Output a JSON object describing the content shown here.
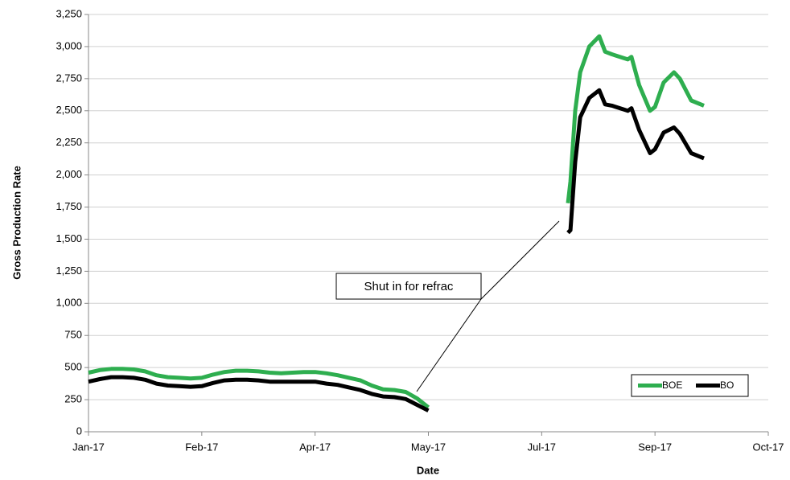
{
  "chart_data": {
    "type": "line",
    "x_label": "Date",
    "y_label": "Gross Production Rate",
    "annotation": "Shut in for refrac",
    "legend": "lower right",
    "grid": true,
    "xlim": [
      0,
      300
    ],
    "xticks": [
      {
        "value": 0,
        "label": "Jan-17"
      },
      {
        "value": 50,
        "label": "Feb-17"
      },
      {
        "value": 100,
        "label": "Apr-17"
      },
      {
        "value": 150,
        "label": "May-17"
      },
      {
        "value": 200,
        "label": "Jul-17"
      },
      {
        "value": 250,
        "label": "Sep-17"
      },
      {
        "value": 300,
        "label": "Oct-17"
      }
    ],
    "ylim": [
      0,
      3250
    ],
    "yticks": [
      0,
      250,
      500,
      750,
      {
        "value": 1000,
        "label": "1,000"
      },
      {
        "value": 1250,
        "label": "1,250"
      },
      {
        "value": 1500,
        "label": "1,500"
      },
      {
        "value": 1750,
        "label": "1,750"
      },
      {
        "value": 2000,
        "label": "2,000"
      },
      {
        "value": 2250,
        "label": "2,250"
      },
      {
        "value": 2500,
        "label": "2,500"
      },
      {
        "value": 2750,
        "label": "2,750"
      },
      {
        "value": 3000,
        "label": "3,000"
      },
      {
        "value": 3250,
        "label": "3,250"
      }
    ],
    "x": [
      0,
      5,
      10,
      15,
      20,
      25,
      30,
      35,
      40,
      45,
      50,
      55,
      60,
      65,
      70,
      75,
      80,
      85,
      90,
      95,
      100,
      105,
      110,
      115,
      120,
      125,
      130,
      135,
      140,
      145,
      150,
      180,
      211.6,
      212.7,
      214.8,
      217,
      221,
      225.4,
      228,
      231,
      238,
      239.6,
      243,
      247.8,
      250,
      253.8,
      258.4,
      261,
      266,
      271.6
    ],
    "series": [
      {
        "name": "BOE",
        "color": "#2eae4f",
        "values": [
          460,
          480,
          490,
          490,
          485,
          470,
          440,
          425,
          420,
          415,
          420,
          445,
          465,
          475,
          475,
          470,
          460,
          455,
          460,
          465,
          465,
          455,
          440,
          420,
          400,
          360,
          330,
          325,
          310,
          260,
          190,
          null,
          1780,
          1950,
          2500,
          2800,
          3000,
          3080,
          2960,
          2940,
          2900,
          2920,
          2700,
          2500,
          2530,
          2720,
          2800,
          2750,
          2580,
          2540
        ]
      },
      {
        "name": "BO",
        "color": "#000000",
        "values": [
          390,
          410,
          425,
          425,
          420,
          405,
          375,
          360,
          355,
          350,
          355,
          380,
          400,
          405,
          405,
          400,
          390,
          390,
          390,
          390,
          390,
          375,
          365,
          345,
          325,
          295,
          275,
          270,
          255,
          210,
          165,
          null,
          1550,
          1570,
          2100,
          2450,
          2600,
          2660,
          2550,
          2540,
          2500,
          2520,
          2350,
          2170,
          2200,
          2330,
          2370,
          2320,
          2170,
          2130
        ]
      }
    ]
  }
}
